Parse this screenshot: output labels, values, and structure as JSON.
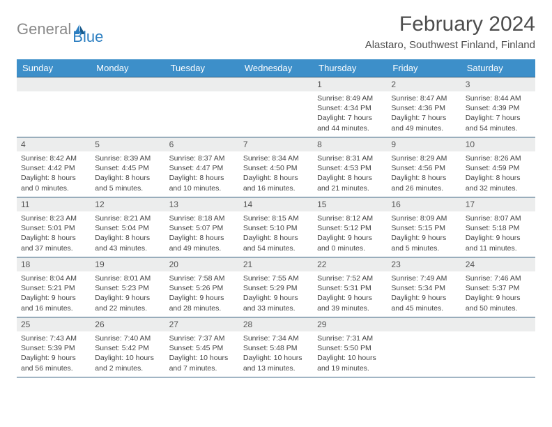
{
  "logo": {
    "text1": "General",
    "text2": "Blue"
  },
  "title": "February 2024",
  "location": "Alastaro, Southwest Finland, Finland",
  "colors": {
    "header_bg": "#3d8fc9",
    "header_text": "#ffffff",
    "row_border": "#2d5a7a",
    "daynum_bg": "#eceded",
    "logo_gray": "#8a8a8a",
    "logo_blue": "#2d7fc1",
    "text": "#4d4d4d"
  },
  "daysOfWeek": [
    "Sunday",
    "Monday",
    "Tuesday",
    "Wednesday",
    "Thursday",
    "Friday",
    "Saturday"
  ],
  "startOffset": 4,
  "days": [
    {
      "n": 1,
      "sunrise": "8:49 AM",
      "sunset": "4:34 PM",
      "dlh": 7,
      "dlm": 44
    },
    {
      "n": 2,
      "sunrise": "8:47 AM",
      "sunset": "4:36 PM",
      "dlh": 7,
      "dlm": 49
    },
    {
      "n": 3,
      "sunrise": "8:44 AM",
      "sunset": "4:39 PM",
      "dlh": 7,
      "dlm": 54
    },
    {
      "n": 4,
      "sunrise": "8:42 AM",
      "sunset": "4:42 PM",
      "dlh": 8,
      "dlm": 0
    },
    {
      "n": 5,
      "sunrise": "8:39 AM",
      "sunset": "4:45 PM",
      "dlh": 8,
      "dlm": 5
    },
    {
      "n": 6,
      "sunrise": "8:37 AM",
      "sunset": "4:47 PM",
      "dlh": 8,
      "dlm": 10
    },
    {
      "n": 7,
      "sunrise": "8:34 AM",
      "sunset": "4:50 PM",
      "dlh": 8,
      "dlm": 16
    },
    {
      "n": 8,
      "sunrise": "8:31 AM",
      "sunset": "4:53 PM",
      "dlh": 8,
      "dlm": 21
    },
    {
      "n": 9,
      "sunrise": "8:29 AM",
      "sunset": "4:56 PM",
      "dlh": 8,
      "dlm": 26
    },
    {
      "n": 10,
      "sunrise": "8:26 AM",
      "sunset": "4:59 PM",
      "dlh": 8,
      "dlm": 32
    },
    {
      "n": 11,
      "sunrise": "8:23 AM",
      "sunset": "5:01 PM",
      "dlh": 8,
      "dlm": 37
    },
    {
      "n": 12,
      "sunrise": "8:21 AM",
      "sunset": "5:04 PM",
      "dlh": 8,
      "dlm": 43
    },
    {
      "n": 13,
      "sunrise": "8:18 AM",
      "sunset": "5:07 PM",
      "dlh": 8,
      "dlm": 49
    },
    {
      "n": 14,
      "sunrise": "8:15 AM",
      "sunset": "5:10 PM",
      "dlh": 8,
      "dlm": 54
    },
    {
      "n": 15,
      "sunrise": "8:12 AM",
      "sunset": "5:12 PM",
      "dlh": 9,
      "dlm": 0
    },
    {
      "n": 16,
      "sunrise": "8:09 AM",
      "sunset": "5:15 PM",
      "dlh": 9,
      "dlm": 5
    },
    {
      "n": 17,
      "sunrise": "8:07 AM",
      "sunset": "5:18 PM",
      "dlh": 9,
      "dlm": 11
    },
    {
      "n": 18,
      "sunrise": "8:04 AM",
      "sunset": "5:21 PM",
      "dlh": 9,
      "dlm": 16
    },
    {
      "n": 19,
      "sunrise": "8:01 AM",
      "sunset": "5:23 PM",
      "dlh": 9,
      "dlm": 22
    },
    {
      "n": 20,
      "sunrise": "7:58 AM",
      "sunset": "5:26 PM",
      "dlh": 9,
      "dlm": 28
    },
    {
      "n": 21,
      "sunrise": "7:55 AM",
      "sunset": "5:29 PM",
      "dlh": 9,
      "dlm": 33
    },
    {
      "n": 22,
      "sunrise": "7:52 AM",
      "sunset": "5:31 PM",
      "dlh": 9,
      "dlm": 39
    },
    {
      "n": 23,
      "sunrise": "7:49 AM",
      "sunset": "5:34 PM",
      "dlh": 9,
      "dlm": 45
    },
    {
      "n": 24,
      "sunrise": "7:46 AM",
      "sunset": "5:37 PM",
      "dlh": 9,
      "dlm": 50
    },
    {
      "n": 25,
      "sunrise": "7:43 AM",
      "sunset": "5:39 PM",
      "dlh": 9,
      "dlm": 56
    },
    {
      "n": 26,
      "sunrise": "7:40 AM",
      "sunset": "5:42 PM",
      "dlh": 10,
      "dlm": 2
    },
    {
      "n": 27,
      "sunrise": "7:37 AM",
      "sunset": "5:45 PM",
      "dlh": 10,
      "dlm": 7
    },
    {
      "n": 28,
      "sunrise": "7:34 AM",
      "sunset": "5:48 PM",
      "dlh": 10,
      "dlm": 13
    },
    {
      "n": 29,
      "sunrise": "7:31 AM",
      "sunset": "5:50 PM",
      "dlh": 10,
      "dlm": 19
    }
  ]
}
